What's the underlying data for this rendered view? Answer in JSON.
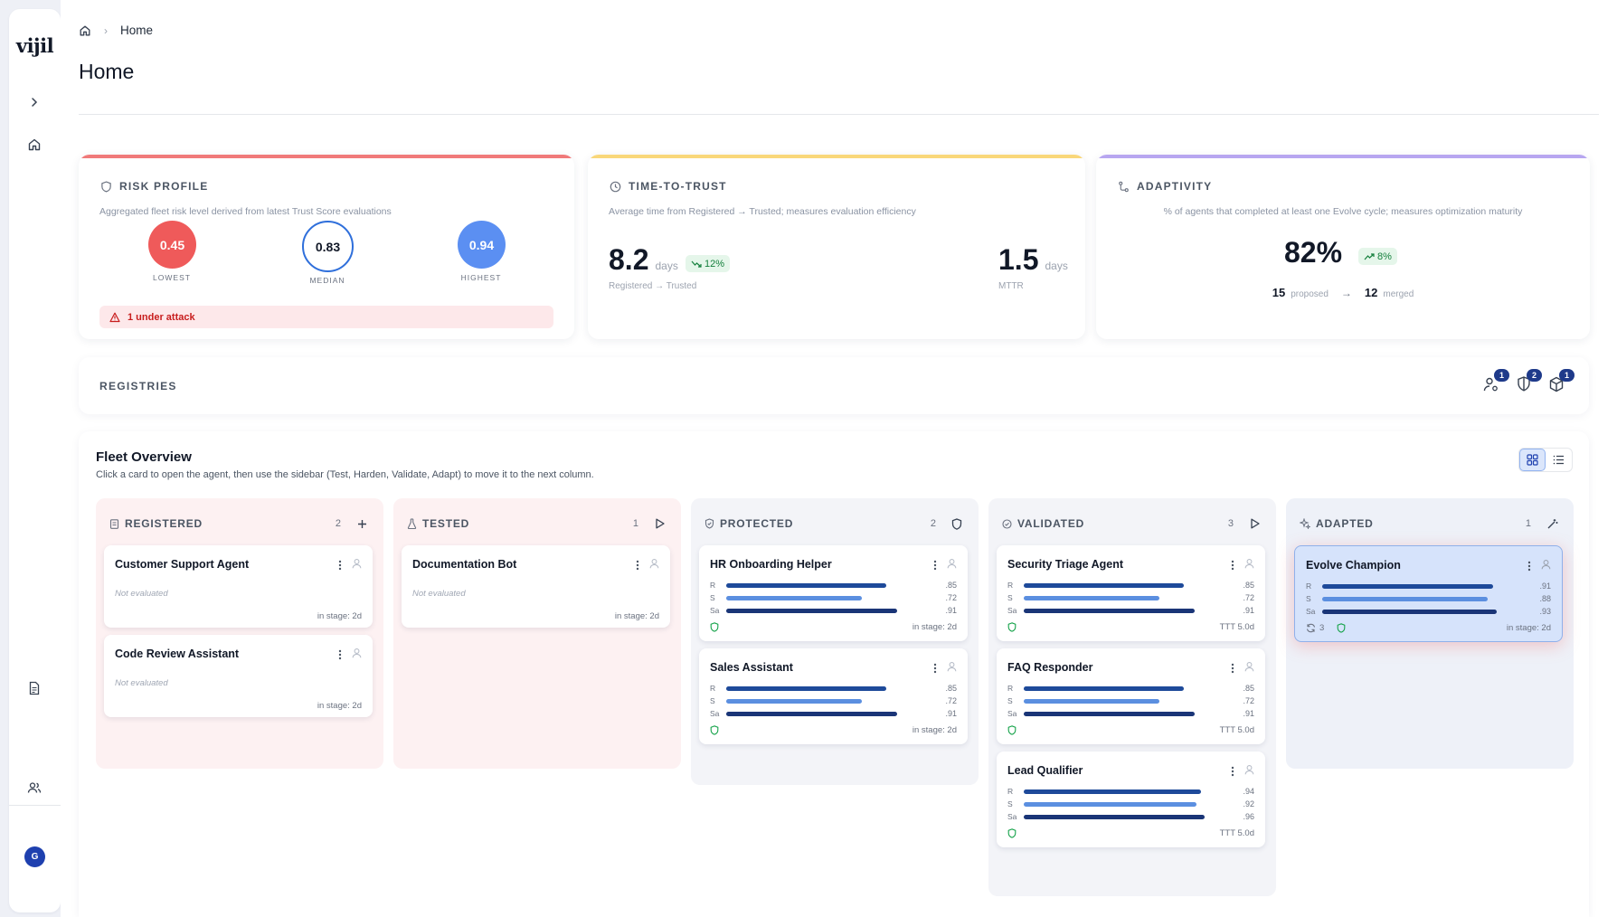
{
  "app": {
    "logo": "vijil"
  },
  "breadcrumb": {
    "current": "Home"
  },
  "page": {
    "title": "Home"
  },
  "sidebar": {
    "avatar_initial": "G"
  },
  "risk": {
    "title": "RISK PROFILE",
    "subtitle": "Aggregated fleet risk level derived from latest Trust Score evaluations",
    "lowest": {
      "value": "0.45",
      "label": "LOWEST",
      "color": "#ef5a5a"
    },
    "median": {
      "value": "0.83",
      "label": "MEDIAN",
      "color": "#2f6fdb"
    },
    "highest": {
      "value": "0.94",
      "label": "HIGHEST",
      "color": "#5b8ff2"
    },
    "alert": "1 under attack",
    "accent": "#f07a7a"
  },
  "ttt": {
    "title": "TIME-TO-TRUST",
    "subtitle": "Average time from Registered → Trusted; measures evaluation efficiency",
    "avg_value": "8.2",
    "avg_unit": "days",
    "avg_change": "12%",
    "avg_label": "Registered → Trusted",
    "mttr_value": "1.5",
    "mttr_unit": "days",
    "mttr_label": "MTTR",
    "accent": "#f9d77a"
  },
  "adaptivity": {
    "title": "ADAPTIVITY",
    "subtitle": "% of agents that completed at least one Evolve cycle; measures optimization maturity",
    "value": "82%",
    "change": "8%",
    "proposed_count": "15",
    "proposed_label": "proposed",
    "merged_count": "12",
    "merged_label": "merged",
    "accent": "#b7a6f0"
  },
  "registries": {
    "title": "REGISTRIES",
    "badges": [
      "1",
      "2",
      "1"
    ]
  },
  "fleet": {
    "title": "Fleet Overview",
    "subtitle": "Click a card to open the agent, then use the sidebar (Test, Harden, Validate, Adapt) to move it to the next column.",
    "columns": [
      {
        "name": "REGISTERED",
        "count": "2"
      },
      {
        "name": "TESTED",
        "count": "1"
      },
      {
        "name": "PROTECTED",
        "count": "2"
      },
      {
        "name": "VALIDATED",
        "count": "3"
      },
      {
        "name": "ADAPTED",
        "count": "1"
      }
    ],
    "registered": [
      {
        "name": "Customer Support Agent",
        "status": "Not evaluated",
        "stage": "in stage: 2d"
      },
      {
        "name": "Code Review Assistant",
        "status": "Not evaluated",
        "stage": "in stage: 2d"
      }
    ],
    "tested": [
      {
        "name": "Documentation Bot",
        "status": "Not evaluated",
        "stage": "in stage: 2d"
      }
    ],
    "bar_labels": [
      "R",
      "S",
      "Sa"
    ],
    "protected": [
      {
        "name": "HR Onboarding Helper",
        "r": ".85",
        "s": ".72",
        "sa": ".91",
        "stage": "in stage: 2d"
      },
      {
        "name": "Sales Assistant",
        "r": ".85",
        "s": ".72",
        "sa": ".91",
        "stage": "in stage: 2d"
      }
    ],
    "validated": [
      {
        "name": "Security Triage Agent",
        "r": ".85",
        "s": ".72",
        "sa": ".91",
        "ttt": "TTT 5.0d"
      },
      {
        "name": "FAQ Responder",
        "r": ".85",
        "s": ".72",
        "sa": ".91",
        "ttt": "TTT 5.0d"
      },
      {
        "name": "Lead Qualifier",
        "r": ".94",
        "s": ".92",
        "sa": ".96",
        "ttt": "TTT 5.0d"
      }
    ],
    "adapted": [
      {
        "name": "Evolve Champion",
        "r": ".91",
        "s": ".88",
        "sa": ".93",
        "cycles": "3",
        "stage": "in stage: 2d"
      }
    ],
    "bar_colors": {
      "r": "#1e4a9a",
      "s": "#5b8fe0",
      "sa": "#1a3577"
    }
  }
}
